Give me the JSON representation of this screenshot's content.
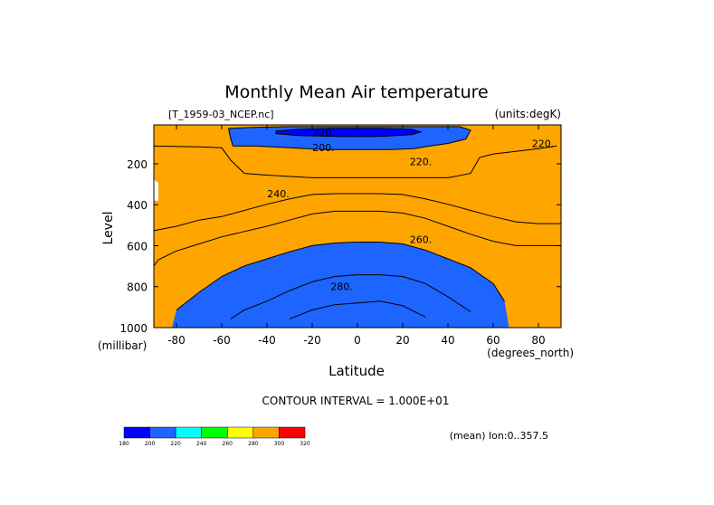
{
  "chart_data": {
    "type": "contour",
    "title": "Monthly Mean Air temperature",
    "source_label": "[T_1959-03_NCEP.nc]",
    "units_label": "(units:degK)",
    "xlabel": "Latitude",
    "x_units": "(degrees_north)",
    "ylabel": "Level",
    "y_units": "(millibar)",
    "x_ticks": [
      "-80",
      "-60",
      "-40",
      "-20",
      "0",
      "20",
      "40",
      "60",
      "80"
    ],
    "x_tick_values": [
      -80,
      -60,
      -40,
      -20,
      0,
      20,
      40,
      60,
      80
    ],
    "y_ticks": [
      "200",
      "400",
      "600",
      "800",
      "1000"
    ],
    "y_tick_values": [
      200,
      400,
      600,
      800,
      1000
    ],
    "xlim": [
      -90,
      90
    ],
    "ylim": [
      1000,
      10
    ],
    "contour_interval_text": "CONTOUR INTERVAL = 1.000E+01",
    "contour_interval": 10,
    "footer_note": "(mean) lon:0..357.5",
    "contour_labels": [
      {
        "text": "220.",
        "lat": -15,
        "lev": 45
      },
      {
        "text": "200.",
        "lat": -15,
        "lev": 120
      },
      {
        "text": "220.",
        "lat": 82,
        "lev": 100
      },
      {
        "text": "220.",
        "lat": 28,
        "lev": 190
      },
      {
        "text": "240.",
        "lat": -35,
        "lev": 345
      },
      {
        "text": "260.",
        "lat": 28,
        "lev": 570
      },
      {
        "text": "280.",
        "lat": -7,
        "lev": 800
      }
    ],
    "fill_levels": [
      {
        "min": 180,
        "max": 200,
        "color": "#0000ff"
      },
      {
        "min": 200,
        "max": 220,
        "color": "#1e64ff"
      },
      {
        "min": 220,
        "max": 240,
        "color": "#00ffff"
      },
      {
        "min": 240,
        "max": 260,
        "color": "#00ff00"
      },
      {
        "min": 260,
        "max": 280,
        "color": "#ffff00"
      },
      {
        "min": 280,
        "max": 300,
        "color": "#ffa500"
      },
      {
        "min": 300,
        "max": 320,
        "color": "#ff0000"
      }
    ],
    "colorbar_ticks": [
      "180",
      "200",
      "220",
      "240",
      "260",
      "280",
      "300",
      "320"
    ],
    "boundaries": {
      "b200_lower": [
        [
          -5,
          0
        ],
        [
          -95,
          40
        ],
        [
          -95,
          56
        ],
        [
          -90,
          80
        ],
        [
          -85,
          92
        ],
        [
          -80,
          96
        ],
        [
          -60,
          96
        ],
        [
          -40,
          97
        ],
        [
          -20,
          100
        ],
        [
          0,
          101
        ],
        [
          20,
          101
        ],
        [
          40,
          99
        ],
        [
          60,
          94
        ],
        [
          80,
          86
        ],
        [
          95,
          76
        ],
        [
          95,
          0
        ]
      ],
      "t200_lower": [
        [
          -5,
          0
        ],
        [
          -95,
          40
        ],
        [
          -95,
          56
        ],
        [
          -90,
          80
        ],
        [
          -85,
          92
        ],
        [
          -80,
          96
        ],
        [
          -60,
          96
        ],
        [
          -40,
          97
        ],
        [
          -20,
          100
        ],
        [
          0,
          101
        ],
        [
          20,
          101
        ],
        [
          40,
          99
        ],
        [
          60,
          94
        ],
        [
          80,
          86
        ],
        [
          95,
          76
        ],
        [
          95,
          0
        ]
      ],
      "c220_lower": [
        [
          -95,
          0
        ],
        [
          -95,
          20
        ],
        [
          -90,
          24
        ],
        [
          -70,
          25
        ],
        [
          -60,
          26
        ],
        [
          -56,
          40
        ],
        [
          -50,
          55
        ],
        [
          -40,
          57
        ],
        [
          -20,
          60
        ],
        [
          0,
          60
        ],
        [
          20,
          60
        ],
        [
          40,
          60
        ],
        [
          50,
          55
        ],
        [
          54,
          37
        ],
        [
          60,
          33
        ],
        [
          70,
          30
        ],
        [
          80,
          27
        ],
        [
          88,
          24
        ],
        [
          95,
          23
        ],
        [
          95,
          0
        ]
      ],
      "c240_lower": [
        [
          -95,
          0
        ],
        [
          -95,
          118
        ],
        [
          -90,
          120
        ],
        [
          -80,
          115
        ],
        [
          -70,
          108
        ],
        [
          -60,
          104
        ],
        [
          -50,
          97
        ],
        [
          -40,
          90
        ],
        [
          -30,
          84
        ],
        [
          -20,
          79
        ],
        [
          -10,
          78
        ],
        [
          0,
          78
        ],
        [
          10,
          78
        ],
        [
          20,
          79
        ],
        [
          30,
          84
        ],
        [
          40,
          90
        ],
        [
          50,
          97
        ],
        [
          60,
          104
        ],
        [
          70,
          110
        ],
        [
          80,
          112
        ],
        [
          90,
          112
        ],
        [
          95,
          112
        ],
        [
          95,
          0
        ]
      ],
      "c260_lower": [
        [
          -95,
          0
        ],
        [
          -95,
          157
        ],
        [
          -90,
          160
        ],
        [
          -88,
          153
        ],
        [
          -80,
          143
        ],
        [
          -70,
          135
        ],
        [
          -60,
          127
        ],
        [
          -50,
          121
        ],
        [
          -40,
          115
        ],
        [
          -30,
          108
        ],
        [
          -20,
          101
        ],
        [
          -10,
          98
        ],
        [
          0,
          98
        ],
        [
          10,
          98
        ],
        [
          20,
          100
        ],
        [
          30,
          106
        ],
        [
          40,
          115
        ],
        [
          50,
          124
        ],
        [
          60,
          132
        ],
        [
          70,
          137
        ],
        [
          80,
          137
        ],
        [
          90,
          137
        ],
        [
          95,
          137
        ],
        [
          95,
          0
        ]
      ],
      "c280_lower": [
        [
          -95,
          0
        ],
        [
          -95,
          230
        ],
        [
          -82,
          230
        ],
        [
          -80,
          210
        ],
        [
          -70,
          190
        ],
        [
          -60,
          172
        ],
        [
          -50,
          160
        ],
        [
          -40,
          152
        ],
        [
          -30,
          144
        ],
        [
          -20,
          137
        ],
        [
          -10,
          134
        ],
        [
          0,
          133
        ],
        [
          10,
          133
        ],
        [
          20,
          135
        ],
        [
          30,
          142
        ],
        [
          40,
          152
        ],
        [
          50,
          162
        ],
        [
          60,
          180
        ],
        [
          65,
          200
        ],
        [
          67,
          230
        ],
        [
          95,
          230
        ],
        [
          95,
          0
        ]
      ],
      "c300_lower": [
        [
          -95,
          0
        ],
        [
          -95,
          230
        ],
        [
          -60,
          230
        ],
        [
          -56,
          220
        ],
        [
          -50,
          210
        ],
        [
          -40,
          200
        ],
        [
          -30,
          188
        ],
        [
          -20,
          178
        ],
        [
          -10,
          172
        ],
        [
          0,
          170
        ],
        [
          10,
          170
        ],
        [
          20,
          172
        ],
        [
          30,
          180
        ],
        [
          40,
          195
        ],
        [
          50,
          212
        ],
        [
          56,
          230
        ],
        [
          95,
          230
        ],
        [
          95,
          0
        ]
      ],
      "c320_lower": [
        [
          -95,
          0
        ],
        [
          -95,
          230
        ],
        [
          -36,
          230
        ],
        [
          -30,
          220
        ],
        [
          -20,
          210
        ],
        [
          -10,
          204
        ],
        [
          0,
          202
        ],
        [
          10,
          200
        ],
        [
          20,
          205
        ],
        [
          30,
          218
        ],
        [
          34,
          230
        ],
        [
          95,
          230
        ],
        [
          95,
          0
        ]
      ]
    },
    "region_fill": [
      {
        "boundary": "c220_lower",
        "color": "#00ffff"
      },
      {
        "boundary": "c240_lower",
        "color": "#00ff00"
      },
      {
        "boundary": "c260_lower",
        "color": "#ffff00"
      },
      {
        "boundary": "c280_lower",
        "color": "#ffa500"
      }
    ],
    "dark_blue_region": {
      "color": "#1e64ff",
      "points": [
        [
          -57,
          4
        ],
        [
          -48,
          3
        ],
        [
          -30,
          2
        ],
        [
          -10,
          2
        ],
        [
          10,
          2
        ],
        [
          30,
          2
        ],
        [
          45,
          2
        ],
        [
          50,
          6
        ],
        [
          48,
          16
        ],
        [
          40,
          21
        ],
        [
          32,
          24
        ],
        [
          25,
          27
        ],
        [
          15,
          28
        ],
        [
          0,
          28
        ],
        [
          -15,
          28
        ],
        [
          -30,
          26
        ],
        [
          -45,
          24
        ],
        [
          -55,
          24
        ],
        [
          -56,
          16
        ]
      ]
    },
    "core_region": {
      "color": "#0000ff",
      "points": [
        [
          -36,
          7
        ],
        [
          -26,
          5
        ],
        [
          -10,
          4
        ],
        [
          10,
          4
        ],
        [
          24,
          5
        ],
        [
          28,
          8
        ],
        [
          24,
          11
        ],
        [
          10,
          13
        ],
        [
          -10,
          13
        ],
        [
          -26,
          12
        ],
        [
          -36,
          10
        ]
      ]
    },
    "white_patches": [
      {
        "color": "#ffffff",
        "points": [
          [
            -95,
            54
          ],
          [
            -90,
            54
          ],
          [
            -90,
            62
          ],
          [
            -88,
            66
          ],
          [
            -88,
            86
          ],
          [
            -95,
            86
          ]
        ]
      }
    ]
  }
}
